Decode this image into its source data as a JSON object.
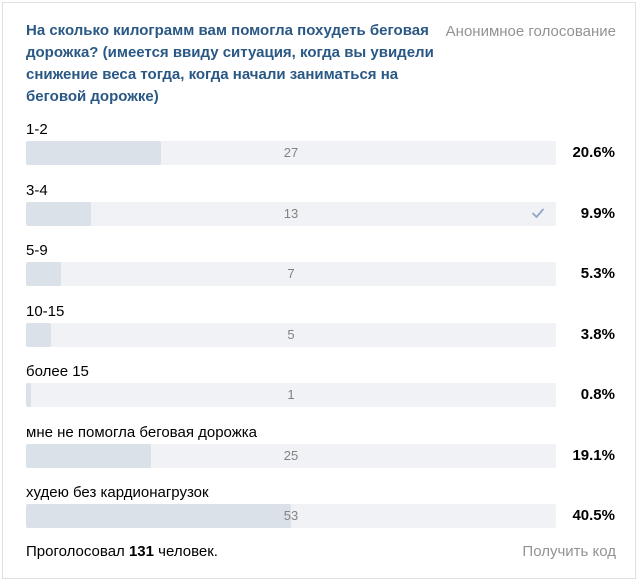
{
  "poll": {
    "question": "На сколько килограмм вам помогла похудеть беговая дорожка? (имеется ввиду ситуация, когда вы увидели снижение веса тогда, когда начали заниматься на беговой дорожке)",
    "type_label": "Анонимное голосование",
    "options": [
      {
        "label": "1-2",
        "count": "27",
        "percent": "20.6%",
        "fraction": 0.206,
        "voted": false
      },
      {
        "label": "3-4",
        "count": "13",
        "percent": "9.9%",
        "fraction": 0.099,
        "voted": true
      },
      {
        "label": "5-9",
        "count": "7",
        "percent": "5.3%",
        "fraction": 0.053,
        "voted": false
      },
      {
        "label": "10-15",
        "count": "5",
        "percent": "3.8%",
        "fraction": 0.038,
        "voted": false
      },
      {
        "label": "более 15",
        "count": "1",
        "percent": "0.8%",
        "fraction": 0.008,
        "voted": false
      },
      {
        "label": "мне не помогла беговая дорожка",
        "count": "25",
        "percent": "19.1%",
        "fraction": 0.191,
        "voted": false
      },
      {
        "label": "худею без кардионагрузок",
        "count": "53",
        "percent": "40.5%",
        "fraction": 0.405,
        "voted": false
      }
    ],
    "total_prefix": "Проголосовал",
    "total_count": "131",
    "total_suffix": "человек.",
    "get_code_label": "Получить код"
  },
  "colors": {
    "title": "#2a5885",
    "muted": "#939393",
    "bar_track": "#f0f2f5",
    "bar_fill": "#dae1e8",
    "check": "#8fa8c4"
  },
  "icons": {
    "voted_marker": "checkmark-icon"
  }
}
